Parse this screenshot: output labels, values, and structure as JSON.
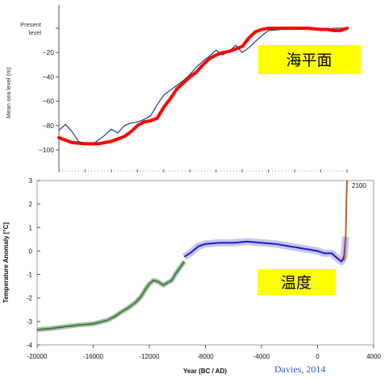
{
  "colors": {
    "label_box": "#ffff00",
    "sea_smooth": "#ff0000",
    "sea_raw": "#1f3f8f",
    "temp_green": "#2e8b2e",
    "temp_blue": "#1a1acc",
    "temp_band": "#c6c6f0",
    "temp_green_band": "#b9b9b9",
    "projection": "#b2622a",
    "credit": "#3355bb"
  },
  "chart_data": [
    {
      "type": "line",
      "label": "海平面",
      "ylabel": "Mean sea level (m)",
      "top_label": "Present level",
      "yticks": [
        "−20",
        "−40",
        "−60",
        "−80",
        "−100"
      ],
      "ylim": [
        -110,
        0
      ],
      "xlim": [
        -20000,
        2000
      ],
      "series": [
        {
          "x": [
            -20000,
            -19000,
            -18000,
            -17000,
            -16000,
            -15000,
            -14500,
            -14000,
            -13500,
            -13000,
            -12500,
            -12000,
            -11500,
            -11000,
            -10500,
            -10000,
            -9500,
            -9000,
            -8500,
            -8000,
            -7500,
            -7000,
            -6500,
            -6000,
            -5500,
            -5000,
            -4500,
            -4000,
            -3000,
            -2000,
            -1000,
            0,
            500,
            1000,
            1500,
            2000
          ],
          "y": [
            -90,
            -94,
            -95,
            -95,
            -93,
            -89,
            -85,
            -80,
            -77,
            -76,
            -74,
            -65,
            -58,
            -50,
            -45,
            -40,
            -36,
            -30,
            -25,
            -22,
            -20,
            -19,
            -17,
            -15,
            -8,
            -3,
            -1,
            0,
            0,
            0,
            0,
            -1,
            -1,
            -2,
            -2,
            0
          ]
        },
        {
          "x": [
            -20000,
            -19500,
            -19000,
            -18500,
            -18000,
            -17500,
            -17000,
            -16500,
            -16000,
            -15500,
            -15000,
            -14500,
            -14000,
            -13500,
            -13000,
            -12500,
            -12000,
            -11500,
            -11000,
            -10500,
            -10000,
            -9500,
            -9000,
            -8500,
            -8000,
            -7500,
            -7000,
            -6500,
            -6000,
            -5500,
            -5000,
            -4500,
            -4000,
            -3000,
            -2000,
            -1000,
            0,
            1000,
            2000
          ],
          "y": [
            -84,
            -79,
            -85,
            -93,
            -95,
            -96,
            -92,
            -88,
            -83,
            -86,
            -80,
            -78,
            -77,
            -75,
            -72,
            -63,
            -55,
            -51,
            -47,
            -43,
            -38,
            -32,
            -27,
            -23,
            -18,
            -22,
            -19,
            -14,
            -20,
            -16,
            -11,
            -6,
            -2,
            -1,
            -1,
            0,
            -2,
            0,
            0
          ]
        }
      ]
    },
    {
      "type": "line",
      "label": "温度",
      "xlabel": "Year (BC / AD)",
      "ylabel": "Temperature Anomaly [°C]",
      "xticks": [
        "-20000",
        "-16000",
        "-12000",
        "-8000",
        "-4000",
        "0",
        "4000"
      ],
      "yticks": [
        "3",
        "2",
        "1",
        "0",
        "-1",
        "-2",
        "-3",
        "-4"
      ],
      "xlim": [
        -20000,
        4000
      ],
      "ylim": [
        -4,
        3
      ],
      "annotation": "2100",
      "series": [
        {
          "x": [
            -20000,
            -19000,
            -18000,
            -17000,
            -16000,
            -15000,
            -14500,
            -14000,
            -13500,
            -13000,
            -12600,
            -12300,
            -12000,
            -11700,
            -11400,
            -11000,
            -10700,
            -10400,
            -10100,
            -9800,
            -9500
          ],
          "y": [
            -3.35,
            -3.3,
            -3.22,
            -3.15,
            -3.1,
            -2.95,
            -2.8,
            -2.6,
            -2.42,
            -2.2,
            -1.95,
            -1.65,
            -1.4,
            -1.25,
            -1.3,
            -1.45,
            -1.35,
            -1.25,
            -0.95,
            -0.7,
            -0.45
          ]
        },
        {
          "x": [
            -9500,
            -9000,
            -8500,
            -8000,
            -7000,
            -6000,
            -5000,
            -4000,
            -3000,
            -2000,
            -1000,
            0,
            500,
            1000,
            1400,
            1700,
            1800,
            1900,
            1950,
            2000
          ],
          "y": [
            -0.25,
            -0.05,
            0.2,
            0.3,
            0.35,
            0.35,
            0.4,
            0.35,
            0.3,
            0.2,
            0.1,
            0.0,
            -0.1,
            -0.1,
            -0.3,
            -0.45,
            -0.35,
            -0.2,
            0.2,
            0.6
          ]
        },
        {
          "x": [
            1900,
            1950,
            2000,
            2030,
            2060,
            2100
          ],
          "y": [
            -0.4,
            -0.1,
            0.5,
            1.3,
            2.2,
            3.0
          ]
        }
      ]
    }
  ],
  "credit": "Davies, 2014"
}
